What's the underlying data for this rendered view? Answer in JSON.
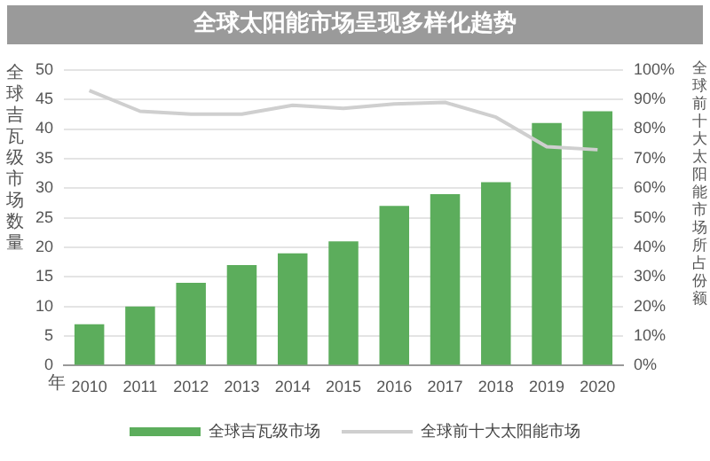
{
  "chart_data": {
    "type": "bar",
    "title": "全球太阳能市场呈现多样化趋势",
    "xlabel": "年",
    "ylabel": "全球吉瓦级市场数量",
    "y2label": "全球前十大太阳能市场所占份额",
    "categories": [
      "2010",
      "2011",
      "2012",
      "2013",
      "2014",
      "2015",
      "2016",
      "2017",
      "2018",
      "2019",
      "2020"
    ],
    "series": [
      {
        "name": "全球吉瓦级市场",
        "color": "#5cad5c",
        "values": [
          7,
          10,
          14,
          17,
          19,
          21,
          27,
          29,
          31,
          41,
          43
        ]
      },
      {
        "name": "全球前十大太阳能市场",
        "type": "line",
        "axis": "y2",
        "color": "#cfcfcf",
        "values": [
          93,
          86,
          85,
          85,
          88,
          87,
          88.5,
          89,
          84,
          74,
          73
        ]
      }
    ],
    "ylim": [
      0,
      50
    ],
    "yticks": [
      0,
      5,
      10,
      15,
      20,
      25,
      30,
      35,
      40,
      45,
      50
    ],
    "y2lim": [
      0,
      100
    ],
    "y2ticks": [
      {
        "value": 0,
        "label": "0%"
      },
      {
        "value": 10,
        "label": "10%"
      },
      {
        "value": 20,
        "label": "20%"
      },
      {
        "value": 30,
        "label": "30%"
      },
      {
        "value": 40,
        "label": "40%"
      },
      {
        "value": 50,
        "label": "50%"
      },
      {
        "value": 60,
        "label": "60%"
      },
      {
        "value": 70,
        "label": "70%"
      },
      {
        "value": 80,
        "label": "80%"
      },
      {
        "value": 90,
        "label": "90%"
      },
      {
        "value": 100,
        "label": "100%"
      }
    ],
    "grid": "y",
    "legend": "bottom",
    "marker": "none",
    "line_style": "solid"
  }
}
